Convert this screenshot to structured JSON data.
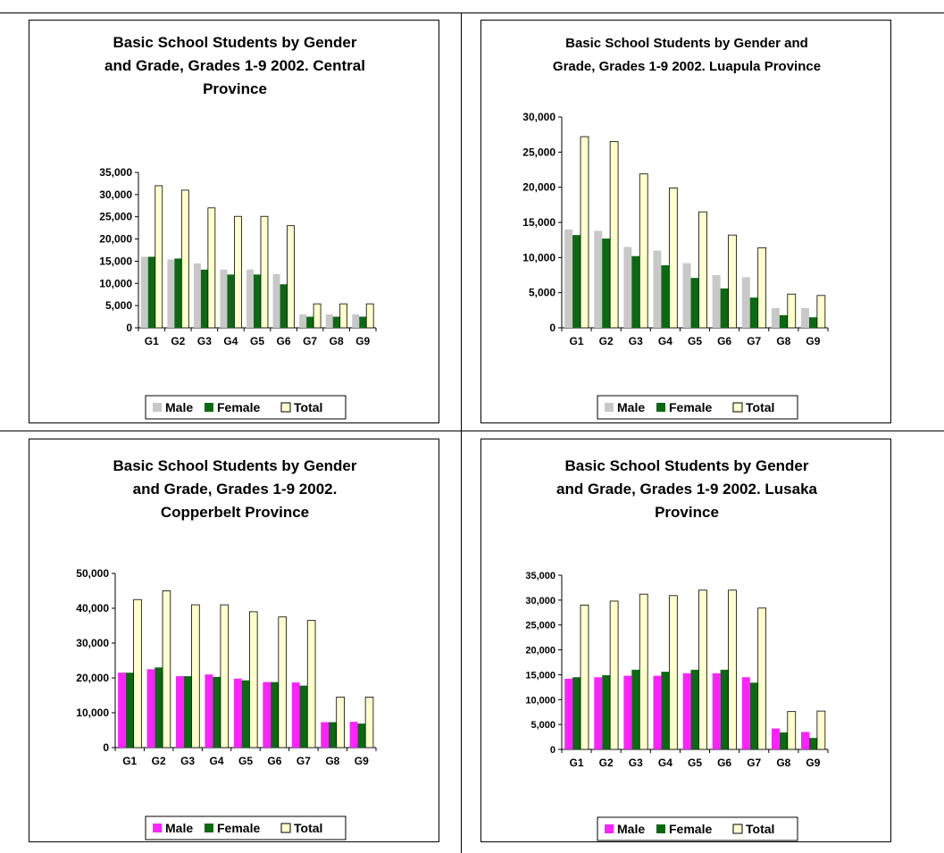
{
  "colors": {
    "female": "#0a6a12",
    "total": "#ffffcc",
    "male_gray": "#c8c8c8",
    "male_magenta": "#ff22ff"
  },
  "chart_data": [
    {
      "type": "bar",
      "title_lines": [
        "Basic School Students by Gender",
        "and Grade, Grades 1-9 2002. Central",
        "Province"
      ],
      "categories": [
        "G1",
        "G2",
        "G3",
        "G4",
        "G5",
        "G6",
        "G7",
        "G8",
        "G9"
      ],
      "ylim": [
        0,
        35000
      ],
      "yticks": [
        "0",
        "5,000",
        "10,000",
        "15,000",
        "20,000",
        "25,000",
        "30,000",
        "35,000"
      ],
      "series": [
        {
          "name": "Male",
          "color": "#c8c8c8",
          "values": [
            16000,
            15400,
            14500,
            13100,
            13100,
            12100,
            3000,
            3000,
            3000
          ]
        },
        {
          "name": "Female",
          "color": "#0a6a12",
          "values": [
            16000,
            15600,
            13100,
            12000,
            12000,
            9800,
            2500,
            2500,
            2500
          ]
        },
        {
          "name": "Total",
          "color": "#ffffcc",
          "values": [
            32000,
            31000,
            27000,
            25100,
            25100,
            23000,
            5400,
            5400,
            5400
          ]
        }
      ],
      "legend": "bottom"
    },
    {
      "type": "bar",
      "title_lines": [
        "Basic School Students by Gender and",
        "Grade, Grades 1-9 2002. Luapula Province"
      ],
      "categories": [
        "G1",
        "G2",
        "G3",
        "G4",
        "G5",
        "G6",
        "G7",
        "G8",
        "G9"
      ],
      "ylim": [
        0,
        30000
      ],
      "yticks": [
        "0",
        "5,000",
        "10,000",
        "15,000",
        "20,000",
        "25,000",
        "30,000"
      ],
      "series": [
        {
          "name": "Male",
          "color": "#c8c8c8",
          "values": [
            14000,
            13800,
            11500,
            11000,
            9200,
            7500,
            7200,
            2800,
            2800
          ]
        },
        {
          "name": "Female",
          "color": "#0a6a12",
          "values": [
            13200,
            12700,
            10200,
            8900,
            7100,
            5600,
            4300,
            1800,
            1500
          ]
        },
        {
          "name": "Total",
          "color": "#ffffcc",
          "values": [
            27200,
            26500,
            21900,
            19900,
            16500,
            13200,
            11400,
            4800,
            4600
          ]
        }
      ],
      "legend": "bottom"
    },
    {
      "type": "bar",
      "title_lines": [
        "Basic School Students by Gender",
        "and Grade, Grades 1-9 2002.",
        "Copperbelt Province"
      ],
      "categories": [
        "G1",
        "G2",
        "G3",
        "G4",
        "G5",
        "G6",
        "G7",
        "G8",
        "G9"
      ],
      "ylim": [
        0,
        50000
      ],
      "yticks": [
        "0",
        "10,000",
        "20,000",
        "30,000",
        "40,000",
        "50,000"
      ],
      "series": [
        {
          "name": "Male",
          "color": "#ff22ff",
          "values": [
            21500,
            22500,
            20500,
            21000,
            19800,
            18800,
            18700,
            7300,
            7400
          ]
        },
        {
          "name": "Female",
          "color": "#0a6a12",
          "values": [
            21500,
            23000,
            20500,
            20300,
            19300,
            18800,
            17800,
            7300,
            6900
          ]
        },
        {
          "name": "Total",
          "color": "#ffffcc",
          "values": [
            42500,
            45000,
            41000,
            41000,
            39000,
            37500,
            36500,
            14500,
            14500
          ]
        }
      ],
      "legend": "bottom"
    },
    {
      "type": "bar",
      "title_lines": [
        "Basic School Students by Gender",
        "and Grade, Grades 1-9 2002. Lusaka",
        "Province"
      ],
      "categories": [
        "G1",
        "G2",
        "G3",
        "G4",
        "G5",
        "G6",
        "G7",
        "G8",
        "G9"
      ],
      "ylim": [
        0,
        35000
      ],
      "yticks": [
        "0",
        "5,000",
        "10,000",
        "15,000",
        "20,000",
        "25,000",
        "30,000",
        "35,000"
      ],
      "series": [
        {
          "name": "Male",
          "color": "#ff22ff",
          "values": [
            14200,
            14500,
            14800,
            14800,
            15300,
            15300,
            14500,
            4200,
            3500
          ]
        },
        {
          "name": "Female",
          "color": "#0a6a12",
          "values": [
            14500,
            14900,
            16000,
            15600,
            16000,
            16000,
            13400,
            3400,
            2300
          ]
        },
        {
          "name": "Total",
          "color": "#ffffcc",
          "values": [
            29000,
            29800,
            31200,
            30900,
            32000,
            32000,
            28400,
            7600,
            7700
          ]
        }
      ],
      "legend": "bottom"
    }
  ]
}
